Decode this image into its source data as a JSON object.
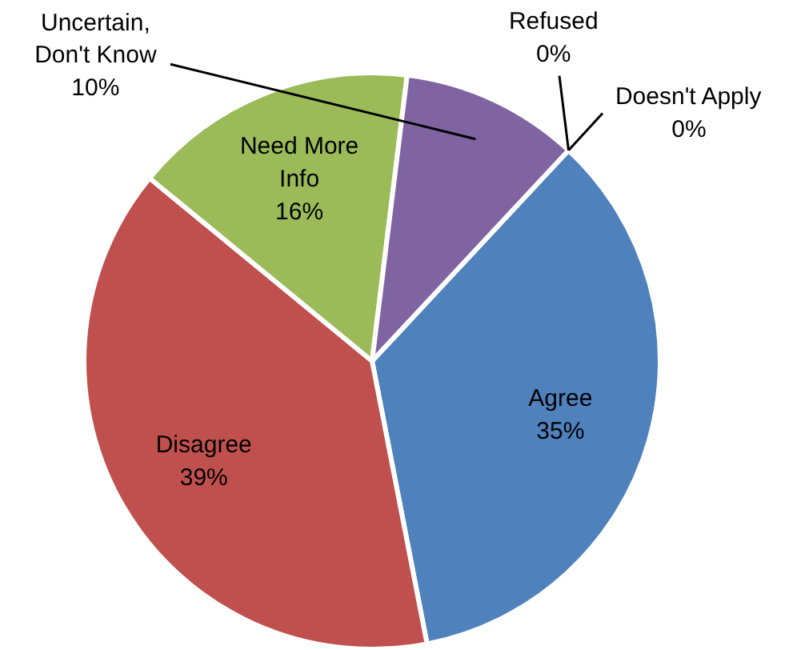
{
  "chart_data": {
    "type": "pie",
    "categories": [
      "Agree",
      "Disagree",
      "Need More Info",
      "Uncertain, Don't Know",
      "Refused",
      "Doesn't Apply"
    ],
    "values": [
      35,
      39,
      16,
      10,
      0,
      0
    ],
    "colors": [
      "#4f81bd",
      "#c0504d",
      "#9bbb59",
      "#8064a2",
      "#4bacc6",
      "#f79646"
    ],
    "value_labels": [
      "35%",
      "39%",
      "16%",
      "10%",
      "0%",
      "0%"
    ]
  }
}
